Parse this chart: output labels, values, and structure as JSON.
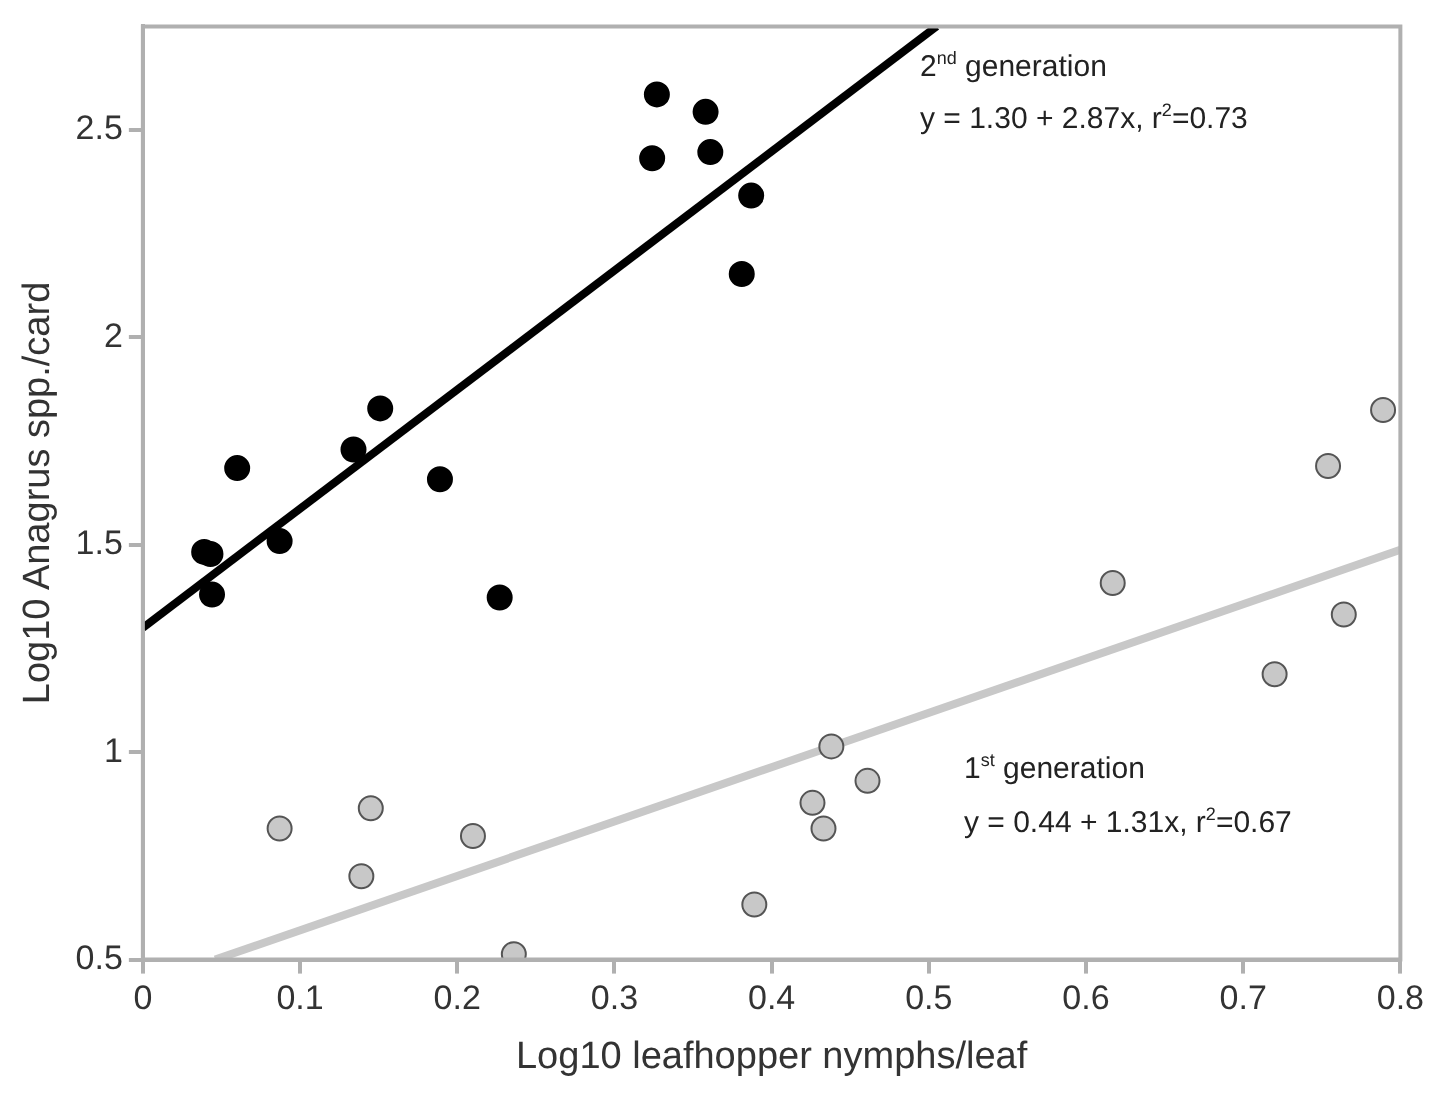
{
  "chart_data": {
    "type": "scatter",
    "xlabel": "Log10 leafhopper nymphs/leaf",
    "ylabel": "Log10 Anagrus spp./card",
    "xlim": [
      0,
      0.8
    ],
    "xticks": [
      0,
      0.1,
      0.2,
      0.3,
      0.4,
      0.5,
      0.6,
      0.7,
      0.8
    ],
    "ylim": [
      0.5,
      2.75
    ],
    "yticks": [
      0.5,
      1,
      1.5,
      2,
      2.5
    ],
    "grid": false,
    "legend": false,
    "series": [
      {
        "type": "scatter",
        "marker": "circle",
        "color": "#000000",
        "x": [
          0.327,
          0.358,
          0.324,
          0.361,
          0.387,
          0.381,
          0.151,
          0.134,
          0.06,
          0.189,
          0.039,
          0.043,
          0.087,
          0.044,
          0.227
        ],
        "values": [
          2.586,
          2.544,
          2.432,
          2.447,
          2.342,
          2.153,
          1.829,
          1.73,
          1.685,
          1.658,
          1.483,
          1.478,
          1.509,
          1.38,
          1.373
        ]
      },
      {
        "type": "scatter",
        "marker": "circle",
        "color": "#c8c8c8",
        "x": [
          0.087,
          0.145,
          0.139,
          0.21,
          0.236,
          0.389,
          0.438,
          0.461,
          0.426,
          0.433,
          0.617,
          0.72,
          0.764,
          0.754,
          0.789
        ],
        "values": [
          0.816,
          0.865,
          0.701,
          0.798,
          0.513,
          0.633,
          1.014,
          0.931,
          0.878,
          0.816,
          1.408,
          1.188,
          1.332,
          1.69,
          1.825
        ]
      },
      {
        "type": "line",
        "marker": "none",
        "color": "#000000",
        "x": [
          0,
          0.505
        ],
        "values": [
          1.3,
          2.75
        ]
      },
      {
        "type": "line",
        "marker": "none",
        "color": "#c8c8c8",
        "x": [
          0.046,
          0.8
        ],
        "values": [
          0.5,
          1.488
        ]
      }
    ],
    "annotations": [
      "2$^{nd}$ generation",
      "y = 1.30 + 2.87x, r$^{2}$=0.73",
      "1$^{st}$ generation",
      "y = 0.44 + 1.31x, r$^{2}$=0.67"
    ]
  }
}
